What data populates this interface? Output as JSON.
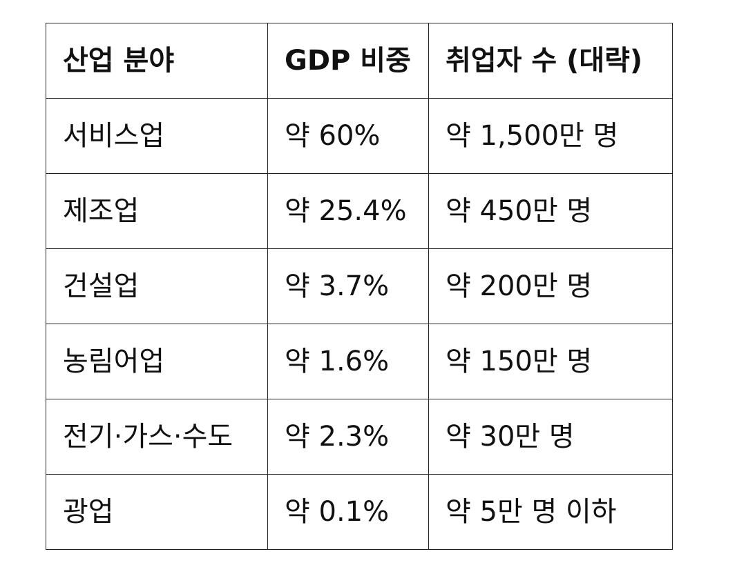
{
  "table": {
    "headers": [
      "산업 분야",
      "GDP 비중",
      "취업자 수 (대략)"
    ],
    "rows": [
      [
        "서비스업",
        "약 60%",
        "약 1,500만 명"
      ],
      [
        "제조업",
        "약 25.4%",
        "약 450만 명"
      ],
      [
        "건설업",
        "약 3.7%",
        "약 200만 명"
      ],
      [
        "농림어업",
        "약 1.6%",
        "약 150만 명"
      ],
      [
        "전기·가스·수도",
        "약 2.3%",
        "약 30만 명"
      ],
      [
        "광업",
        "약 0.1%",
        "약 5만 명 이하"
      ]
    ]
  }
}
